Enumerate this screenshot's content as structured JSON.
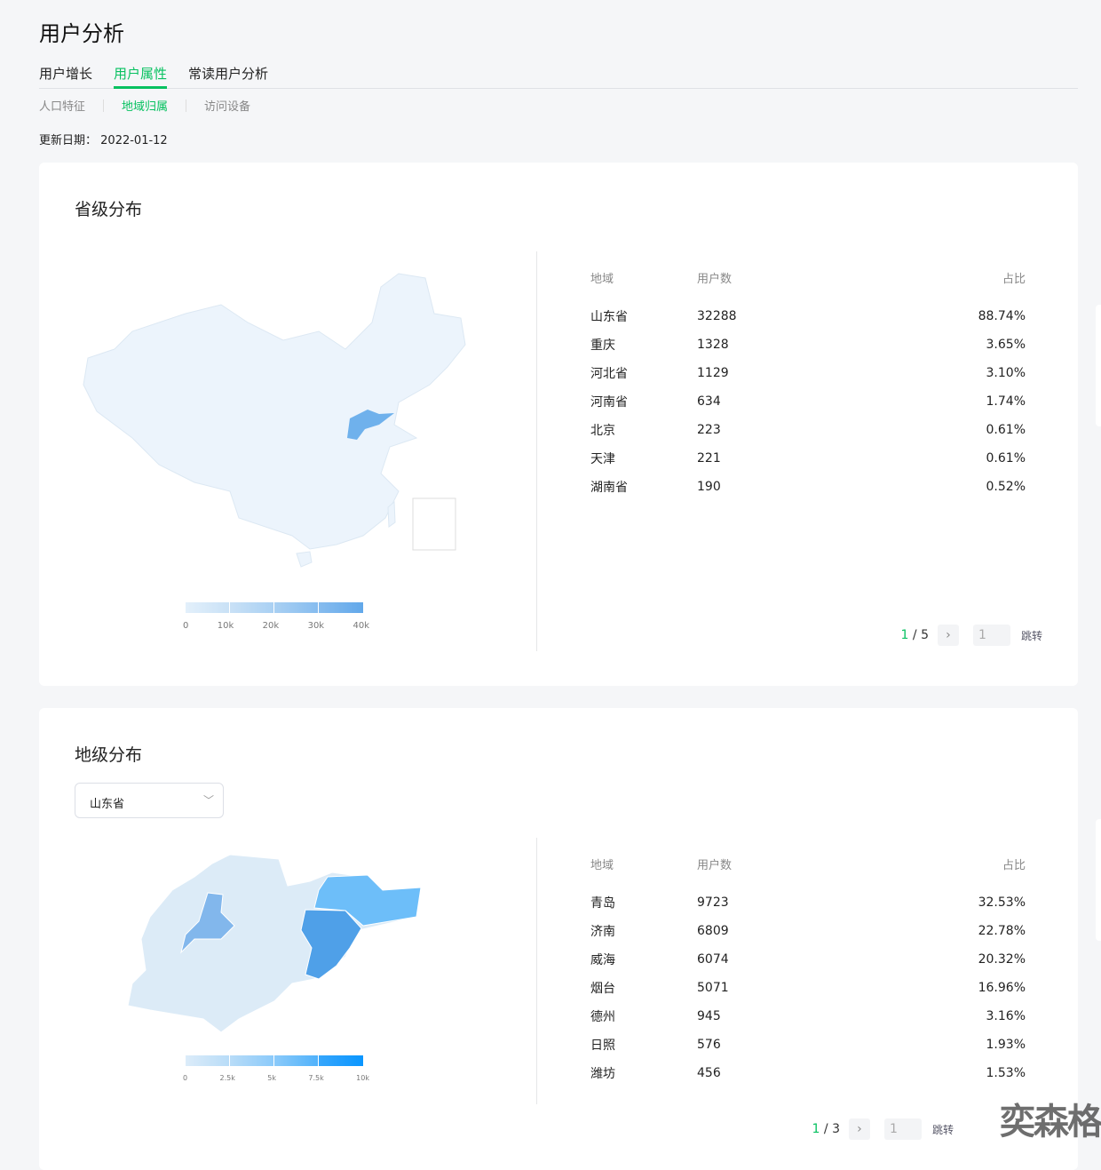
{
  "page_title": "用户分析",
  "tabs": [
    {
      "label": "用户增长"
    },
    {
      "label": "用户属性",
      "active": true
    },
    {
      "label": "常读用户分析"
    }
  ],
  "subtabs": [
    {
      "label": "人口特征"
    },
    {
      "label": "地域归属",
      "active": true
    },
    {
      "label": "访问设备"
    }
  ],
  "update": {
    "label": "更新日期：",
    "value": "2022-01-12"
  },
  "province": {
    "title": "省级分布",
    "headers": {
      "region": "地域",
      "users": "用户数",
      "ratio": "占比"
    },
    "rows": [
      {
        "region": "山东省",
        "users": "32288",
        "ratio": "88.74%"
      },
      {
        "region": "重庆",
        "users": "1328",
        "ratio": "3.65%"
      },
      {
        "region": "河北省",
        "users": "1129",
        "ratio": "3.10%"
      },
      {
        "region": "河南省",
        "users": "634",
        "ratio": "1.74%"
      },
      {
        "region": "北京",
        "users": "223",
        "ratio": "0.61%"
      },
      {
        "region": "天津",
        "users": "221",
        "ratio": "0.61%"
      },
      {
        "region": "湖南省",
        "users": "190",
        "ratio": "0.52%"
      }
    ],
    "legend_ticks": [
      "0",
      "10k",
      "20k",
      "30k",
      "40k"
    ],
    "pager": {
      "current": "1",
      "total": "/ 5",
      "input": "1",
      "jump": "跳转"
    }
  },
  "city": {
    "title": "地级分布",
    "select_value": "山东省",
    "headers": {
      "region": "地域",
      "users": "用户数",
      "ratio": "占比"
    },
    "rows": [
      {
        "region": "青岛",
        "users": "9723",
        "ratio": "32.53%"
      },
      {
        "region": "济南",
        "users": "6809",
        "ratio": "22.78%"
      },
      {
        "region": "威海",
        "users": "6074",
        "ratio": "20.32%"
      },
      {
        "region": "烟台",
        "users": "5071",
        "ratio": "16.96%"
      },
      {
        "region": "德州",
        "users": "945",
        "ratio": "3.16%"
      },
      {
        "region": "日照",
        "users": "576",
        "ratio": "1.93%"
      },
      {
        "region": "潍坊",
        "users": "456",
        "ratio": "1.53%"
      }
    ],
    "legend_ticks": [
      "0",
      "2.5k",
      "5k",
      "7.5k",
      "10k"
    ],
    "pager": {
      "current": "1",
      "total": "/ 3",
      "input": "1",
      "jump": "跳转"
    }
  },
  "watermark": "奕森格",
  "colors": {
    "accent": "#07c160",
    "map_low": "#e8f2fb",
    "map_high": "#0a96ff"
  }
}
